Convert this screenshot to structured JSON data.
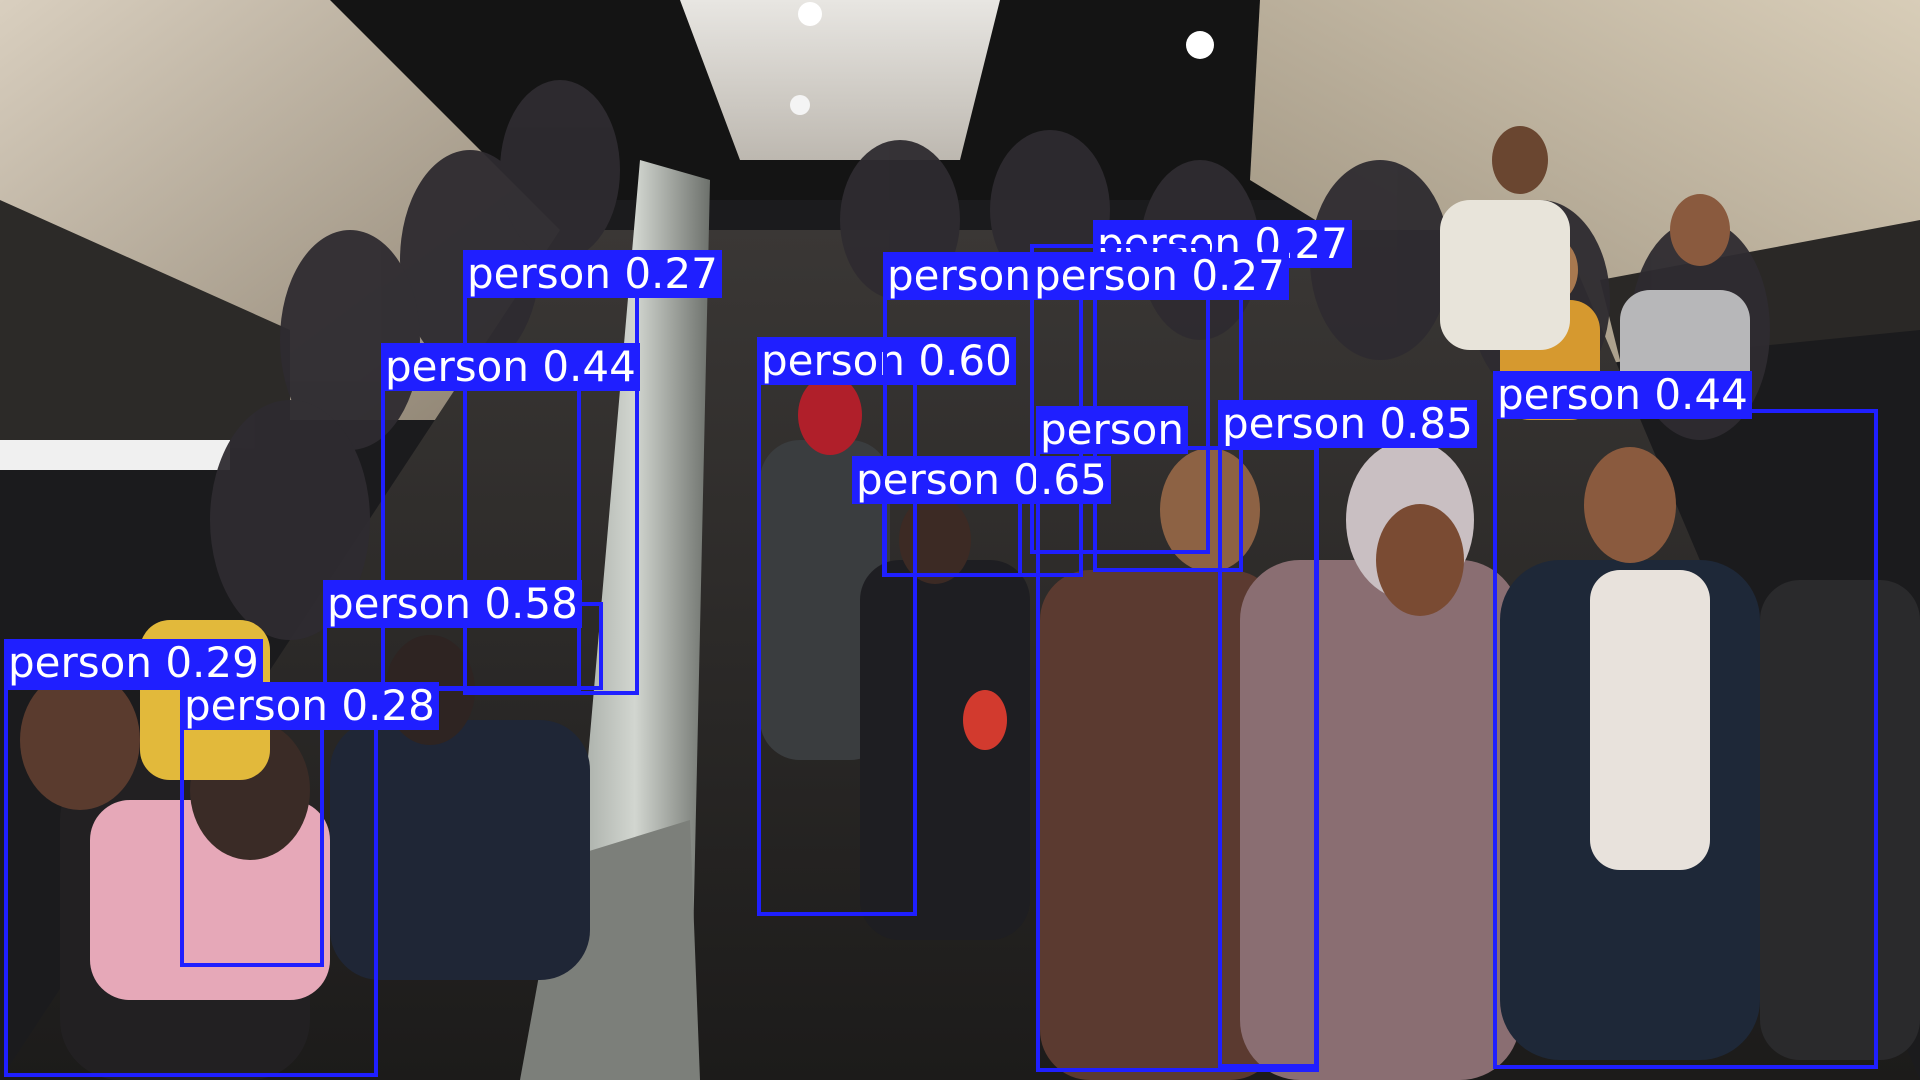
{
  "scene": {
    "description_colors": {
      "box": "#1f1fff",
      "label_text": "#ffffff"
    }
  },
  "detections": [
    {
      "label": "person",
      "confidence": "0.27"
    },
    {
      "label": "person",
      "confidence": "0.44"
    },
    {
      "label": "person",
      "confidence": "0.60"
    },
    {
      "label": "person",
      "confidence": "0.27"
    },
    {
      "label": "person",
      "confidence": "0.27"
    },
    {
      "label": "person",
      "confidence": "0.27"
    },
    {
      "label": "person",
      "confidence": "0.65"
    },
    {
      "label": "person",
      "confidence": "0.85"
    },
    {
      "label": "person",
      "confidence": "0.44"
    },
    {
      "label": "person",
      "confidence": "0.58"
    },
    {
      "label": "person",
      "confidence": "0.29"
    },
    {
      "label": "person",
      "confidence": "0.28"
    },
    {
      "label": "person",
      "confidence": ""
    }
  ]
}
